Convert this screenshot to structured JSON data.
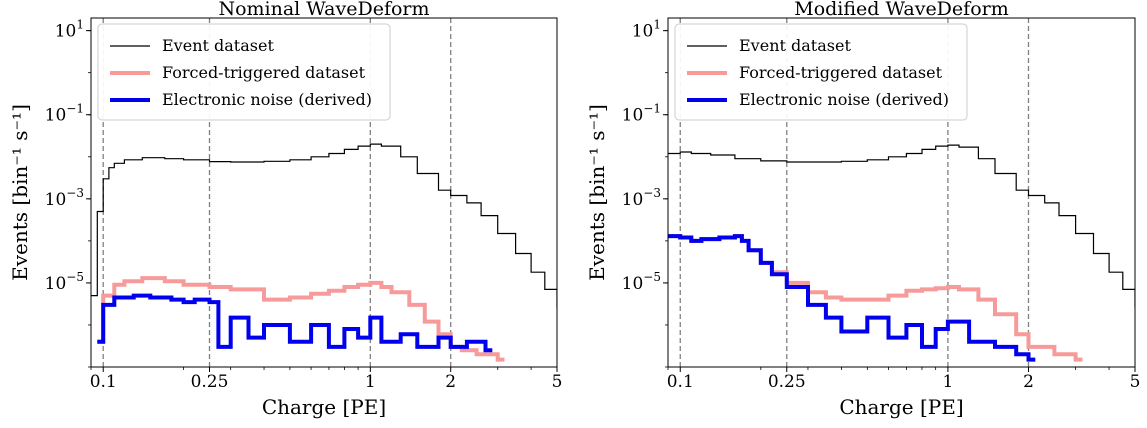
{
  "chart_data": [
    {
      "type": "line",
      "title": "Nominal WaveDeform",
      "xlabel": "Charge [PE]",
      "ylabel": "Events [bin⁻¹ s⁻¹]",
      "xscale": "log",
      "yscale": "log",
      "xlim": [
        0.09,
        5
      ],
      "ylim": [
        1e-07,
        20
      ],
      "xticks": [
        {
          "v": 0.1,
          "label": "0.1"
        },
        {
          "v": 0.25,
          "label": "0.25"
        },
        {
          "v": 1,
          "label": "1"
        },
        {
          "v": 2,
          "label": "2"
        },
        {
          "v": 5,
          "label": "5"
        }
      ],
      "yticks": [
        {
          "v": 1e-05,
          "base": "10",
          "exp": "−5"
        },
        {
          "v": 0.001,
          "base": "10",
          "exp": "−3"
        },
        {
          "v": 0.1,
          "base": "10",
          "exp": "−1"
        },
        {
          "v": 10,
          "base": "10",
          "exp": "1"
        }
      ],
      "vlines": [
        0.1,
        0.25,
        1,
        2
      ],
      "legend_position": "top-left",
      "series": [
        {
          "name": "Event dataset",
          "color": "#000000",
          "style": "thin",
          "x": [
            0.09,
            0.095,
            0.1,
            0.105,
            0.11,
            0.12,
            0.14,
            0.17,
            0.2,
            0.25,
            0.3,
            0.4,
            0.5,
            0.6,
            0.7,
            0.8,
            0.9,
            1.0,
            1.1,
            1.3,
            1.5,
            1.8,
            2.0,
            2.3,
            2.6,
            3.0,
            3.5,
            4.0,
            4.5,
            5.0
          ],
          "y": [
            5e-06,
            0.0005,
            0.003,
            0.0055,
            0.007,
            0.0085,
            0.0095,
            0.009,
            0.0085,
            0.0077,
            0.0075,
            0.0078,
            0.0085,
            0.01,
            0.012,
            0.015,
            0.018,
            0.02,
            0.018,
            0.01,
            0.004,
            0.0016,
            0.0012,
            0.0008,
            0.0004,
            0.00015,
            5e-05,
            1.8e-05,
            7e-06,
            2.7e-06
          ]
        },
        {
          "name": "Forced-triggered dataset",
          "color": "#f79a9a",
          "style": "thick",
          "x": [
            0.095,
            0.1,
            0.11,
            0.12,
            0.14,
            0.17,
            0.2,
            0.25,
            0.3,
            0.4,
            0.5,
            0.6,
            0.7,
            0.8,
            0.9,
            1.0,
            1.1,
            1.2,
            1.4,
            1.6,
            1.8,
            2.0,
            2.2,
            2.5,
            3.0
          ],
          "y": [
            4e-07,
            5e-06,
            9e-06,
            1.1e-05,
            1.3e-05,
            1.1e-05,
            9e-06,
            8e-06,
            7e-06,
            4e-06,
            4.5e-06,
            5.5e-06,
            6.5e-06,
            8e-06,
            9e-06,
            1e-05,
            8e-06,
            6e-06,
            3e-06,
            1.2e-06,
            6e-07,
            3e-07,
            2.5e-07,
            2e-07,
            1.5e-07
          ]
        },
        {
          "name": "Electronic noise (derived)",
          "color": "#0000ee",
          "style": "thick",
          "x": [
            0.095,
            0.1,
            0.11,
            0.13,
            0.15,
            0.18,
            0.2,
            0.22,
            0.25,
            0.27,
            0.3,
            0.35,
            0.4,
            0.5,
            0.6,
            0.7,
            0.8,
            0.9,
            1.0,
            1.1,
            1.3,
            1.5,
            1.8,
            2.0,
            2.3,
            2.7
          ],
          "y": [
            4e-07,
            3e-06,
            4.5e-06,
            5e-06,
            4.5e-06,
            4e-06,
            3.5e-06,
            4e-06,
            3.5e-06,
            3e-07,
            1.5e-06,
            5e-07,
            1e-06,
            4e-07,
            1e-06,
            3e-07,
            8e-07,
            5e-07,
            1.5e-06,
            4e-07,
            6e-07,
            3e-07,
            5e-07,
            3e-07,
            4e-07,
            2.5e-07
          ]
        }
      ]
    },
    {
      "type": "line",
      "title": "Modified WaveDeform",
      "xlabel": "Charge [PE]",
      "ylabel": "Events [bin⁻¹ s⁻¹]",
      "xscale": "log",
      "yscale": "log",
      "xlim": [
        0.09,
        5
      ],
      "ylim": [
        1e-07,
        20
      ],
      "xticks": [
        {
          "v": 0.1,
          "label": "0.1"
        },
        {
          "v": 0.25,
          "label": "0.25"
        },
        {
          "v": 1,
          "label": "1"
        },
        {
          "v": 2,
          "label": "2"
        },
        {
          "v": 5,
          "label": "5"
        }
      ],
      "yticks": [
        {
          "v": 1e-05,
          "base": "10",
          "exp": "−5"
        },
        {
          "v": 0.001,
          "base": "10",
          "exp": "−3"
        },
        {
          "v": 0.1,
          "base": "10",
          "exp": "−1"
        },
        {
          "v": 10,
          "base": "10",
          "exp": "1"
        }
      ],
      "vlines": [
        0.1,
        0.25,
        1,
        2
      ],
      "legend_position": "top-left",
      "series": [
        {
          "name": "Event dataset",
          "color": "#000000",
          "style": "thin",
          "x": [
            0.09,
            0.1,
            0.11,
            0.13,
            0.16,
            0.2,
            0.25,
            0.3,
            0.4,
            0.5,
            0.6,
            0.7,
            0.8,
            0.9,
            1.0,
            1.1,
            1.3,
            1.5,
            1.8,
            2.0,
            2.3,
            2.6,
            3.0,
            3.5,
            4.0,
            4.5,
            5.0
          ],
          "y": [
            0.012,
            0.013,
            0.012,
            0.011,
            0.009,
            0.008,
            0.0075,
            0.0075,
            0.0078,
            0.0085,
            0.01,
            0.012,
            0.015,
            0.018,
            0.019,
            0.017,
            0.009,
            0.004,
            0.0016,
            0.0012,
            0.0008,
            0.0004,
            0.00015,
            5e-05,
            1.8e-05,
            7e-06,
            2.7e-06
          ]
        },
        {
          "name": "Forced-triggered dataset",
          "color": "#f79a9a",
          "style": "thick",
          "x": [
            0.09,
            0.1,
            0.11,
            0.12,
            0.14,
            0.16,
            0.17,
            0.18,
            0.2,
            0.22,
            0.25,
            0.3,
            0.35,
            0.4,
            0.5,
            0.6,
            0.7,
            0.8,
            0.9,
            1.0,
            1.1,
            1.3,
            1.5,
            1.8,
            2.0,
            2.5,
            3.0
          ],
          "y": [
            0.00013,
            0.00012,
            0.0001,
            0.00011,
            0.00012,
            0.00013,
            0.0001,
            6e-05,
            3e-05,
            1.8e-05,
            1e-05,
            6e-06,
            4.5e-06,
            4e-06,
            4e-06,
            5e-06,
            6.5e-06,
            7e-06,
            7.5e-06,
            8e-06,
            7e-06,
            4e-06,
            1.8e-06,
            6e-07,
            3e-07,
            2e-07,
            1.5e-07
          ]
        },
        {
          "name": "Electronic noise (derived)",
          "color": "#0000ee",
          "style": "thick",
          "x": [
            0.09,
            0.1,
            0.11,
            0.12,
            0.14,
            0.16,
            0.17,
            0.18,
            0.2,
            0.22,
            0.25,
            0.3,
            0.35,
            0.4,
            0.5,
            0.6,
            0.7,
            0.8,
            0.9,
            1.0,
            1.2,
            1.5,
            1.8,
            2.0
          ],
          "y": [
            0.00013,
            0.00012,
            0.0001,
            0.00011,
            0.00012,
            0.00013,
            0.0001,
            6e-05,
            3e-05,
            1.6e-05,
            8e-06,
            3e-06,
            1.5e-06,
            7e-07,
            1.5e-06,
            5e-07,
            1e-06,
            3e-07,
            8e-07,
            1.2e-06,
            4e-07,
            3e-07,
            2e-07,
            1.5e-07
          ]
        }
      ]
    }
  ]
}
